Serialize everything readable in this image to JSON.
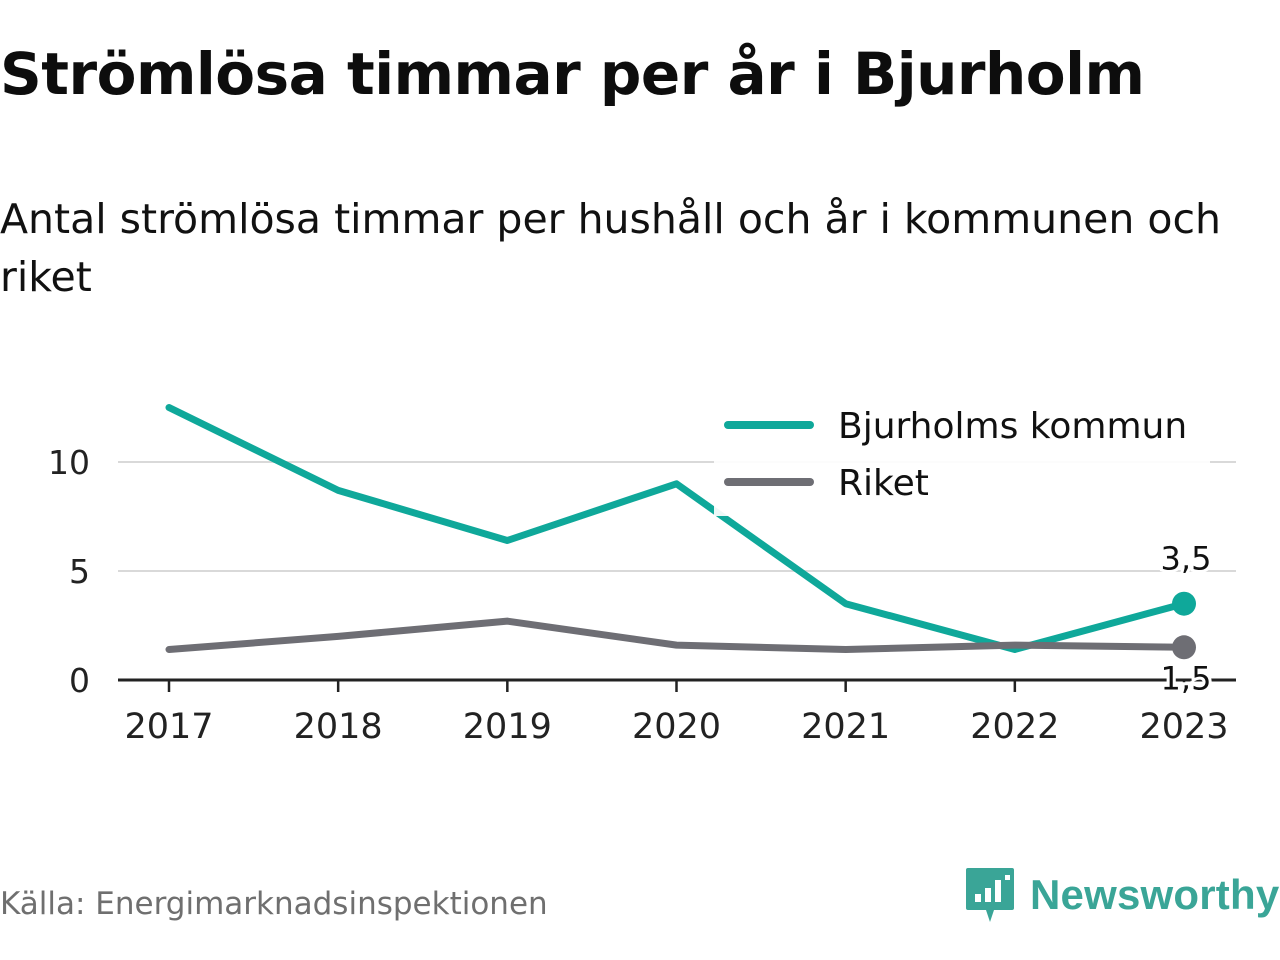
{
  "header": {
    "title": "Strömlösa timmar per år i Bjurholm",
    "subtitle": "Antal strömlösa timmar per hushåll och år i kommunen och riket"
  },
  "footer": {
    "source": "Källa: Energimarknadsinspektionen",
    "brand": "Newsworthy",
    "brand_icon": "newsworthy-logo-icon"
  },
  "colors": {
    "kommun": "#0fa89a",
    "riket": "#6e6e74",
    "grid": "#d9d9d9",
    "axis": "#222222",
    "brand": "#3aa597"
  },
  "chart_data": {
    "type": "line",
    "title": "",
    "xlabel": "",
    "ylabel": "",
    "categories": [
      "2017",
      "2018",
      "2019",
      "2020",
      "2021",
      "2022",
      "2023"
    ],
    "yticks": [
      0,
      5,
      10
    ],
    "ytick_labels": [
      "0",
      "5",
      "10"
    ],
    "ylim": [
      0,
      13
    ],
    "grid": true,
    "legend_position": "top-right",
    "series": [
      {
        "name": "Bjurholms kommun",
        "values": [
          12.5,
          8.7,
          6.4,
          9.0,
          3.5,
          1.4,
          3.5
        ]
      },
      {
        "name": "Riket",
        "values": [
          1.4,
          2.0,
          2.7,
          1.6,
          1.4,
          1.6,
          1.5
        ]
      }
    ],
    "end_labels": [
      "3,5",
      "1,5"
    ]
  }
}
